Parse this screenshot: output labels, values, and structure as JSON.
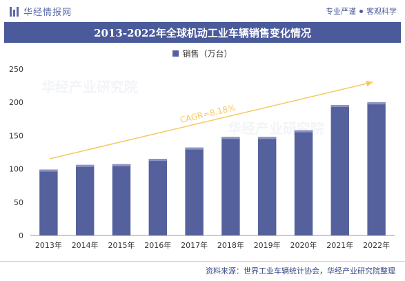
{
  "header": {
    "brand_name": "华经情报网",
    "slogan_left": "专业严谨",
    "slogan_right": "客观科学"
  },
  "chart_title": "2013-2022年全球机动工业车辆销售变化情况",
  "footer": {
    "source": "资料来源：世界工业车辆统计协会，华经产业研究院整理"
  },
  "watermark": {
    "text": "华经产业研究院"
  },
  "colors": {
    "bar": "#55619c",
    "title_bg": "#4a5a9a",
    "arrow": "#f6c85f"
  },
  "chart_data": {
    "type": "bar",
    "categories": [
      "2013年",
      "2014年",
      "2015年",
      "2016年",
      "2017年",
      "2018年",
      "2019年",
      "2020年",
      "2021年",
      "2022年"
    ],
    "series": [
      {
        "name": "销售（万台）",
        "values": [
          99,
          106,
          107,
          115,
          132,
          148,
          148,
          158,
          196,
          200
        ]
      }
    ],
    "yticks": [
      0,
      50,
      100,
      150,
      200,
      250
    ],
    "ylim": [
      0,
      250
    ],
    "annotation": "CAGR=8.18%",
    "legend_position": "top-center",
    "grid": false
  }
}
